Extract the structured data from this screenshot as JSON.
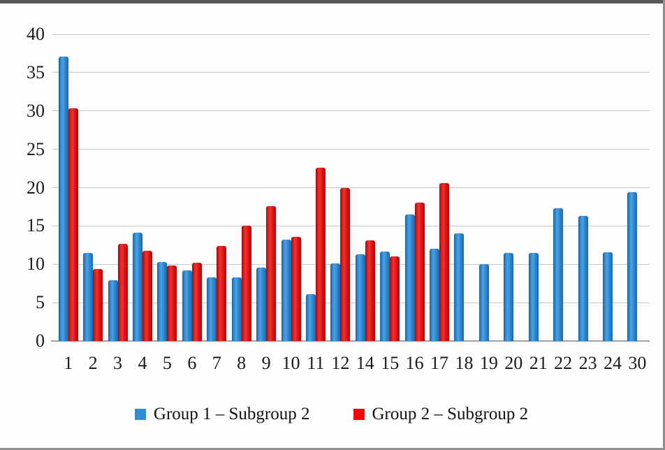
{
  "chart_data": {
    "type": "bar",
    "title": "",
    "xlabel": "",
    "ylabel": "",
    "categories": [
      "1",
      "2",
      "3",
      "4",
      "5",
      "6",
      "7",
      "8",
      "9",
      "10",
      "11",
      "12",
      "14",
      "15",
      "16",
      "17",
      "18",
      "19",
      "20",
      "21",
      "22",
      "23",
      "24",
      "30"
    ],
    "series": [
      {
        "name": "Group 1 – Subgroup 2",
        "color": "#2e8ed8",
        "values": [
          37.1,
          11.5,
          7.9,
          14.1,
          10.3,
          9.2,
          8.3,
          8.3,
          9.6,
          13.2,
          6.1,
          10.1,
          11.3,
          11.7,
          16.5,
          12.0,
          14.0,
          10.0,
          11.5,
          11.5,
          17.3,
          16.3,
          11.6,
          19.4
        ]
      },
      {
        "name": "Group 2 – Subgroup 2",
        "color": "#f00606",
        "values": [
          30.3,
          9.4,
          12.7,
          11.8,
          9.8,
          10.2,
          12.4,
          15.0,
          17.6,
          13.6,
          22.6,
          20.0,
          13.1,
          11.0,
          18.0,
          20.6,
          null,
          null,
          null,
          null,
          null,
          null,
          null,
          null
        ]
      }
    ],
    "ylim": [
      0,
      40
    ],
    "ytick_step": 5,
    "ytick_labels": [
      "0",
      "5",
      "10",
      "15",
      "20",
      "25",
      "30",
      "35",
      "40"
    ],
    "grid": true,
    "gridline_color": "#c9c9c9",
    "legend_position": "bottom"
  }
}
